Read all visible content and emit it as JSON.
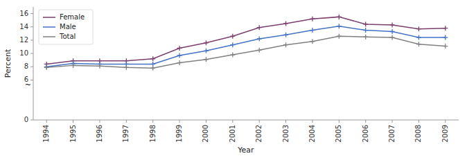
{
  "chart_data": {
    "type": "line",
    "x": [
      1994,
      1995,
      1996,
      1997,
      1998,
      1999,
      2000,
      2001,
      2002,
      2003,
      2004,
      2005,
      2006,
      2007,
      2008,
      2009
    ],
    "series": [
      {
        "name": "Female",
        "color": "#7b3f6e",
        "marker": "plus",
        "line_style": "solid",
        "values": [
          8.4,
          8.9,
          8.9,
          8.9,
          9.2,
          10.8,
          11.6,
          12.6,
          13.9,
          14.5,
          15.2,
          15.5,
          14.4,
          14.3,
          13.7,
          13.8
        ]
      },
      {
        "name": "Male",
        "color": "#4472c4",
        "marker": "plus",
        "line_style": "solid",
        "values": [
          8.0,
          8.5,
          8.4,
          8.4,
          8.4,
          9.7,
          10.4,
          11.3,
          12.2,
          12.8,
          13.5,
          14.1,
          13.5,
          13.3,
          12.4,
          12.4
        ]
      },
      {
        "name": "Total",
        "color": "#808080",
        "marker": "plus",
        "line_style": "solid",
        "values": [
          7.9,
          8.2,
          8.1,
          7.9,
          7.8,
          8.6,
          9.1,
          9.8,
          10.5,
          11.3,
          11.8,
          12.6,
          12.5,
          12.4,
          11.4,
          11.1
        ]
      }
    ],
    "x_label": "Year",
    "y_label": "Percent",
    "xlim": [
      1993.5,
      2009.5
    ],
    "xticks": [
      1994,
      1995,
      1996,
      1997,
      1998,
      1999,
      2000,
      2001,
      2002,
      2003,
      2004,
      2005,
      2006,
      2007,
      2008,
      2009
    ],
    "ylim": [
      0,
      17
    ],
    "yticks": [
      0,
      6,
      8,
      10,
      12,
      14,
      16
    ],
    "annotations": [
      {
        "text": "~",
        "y": 5.2
      }
    ],
    "grid": false,
    "legend": "top-left"
  }
}
